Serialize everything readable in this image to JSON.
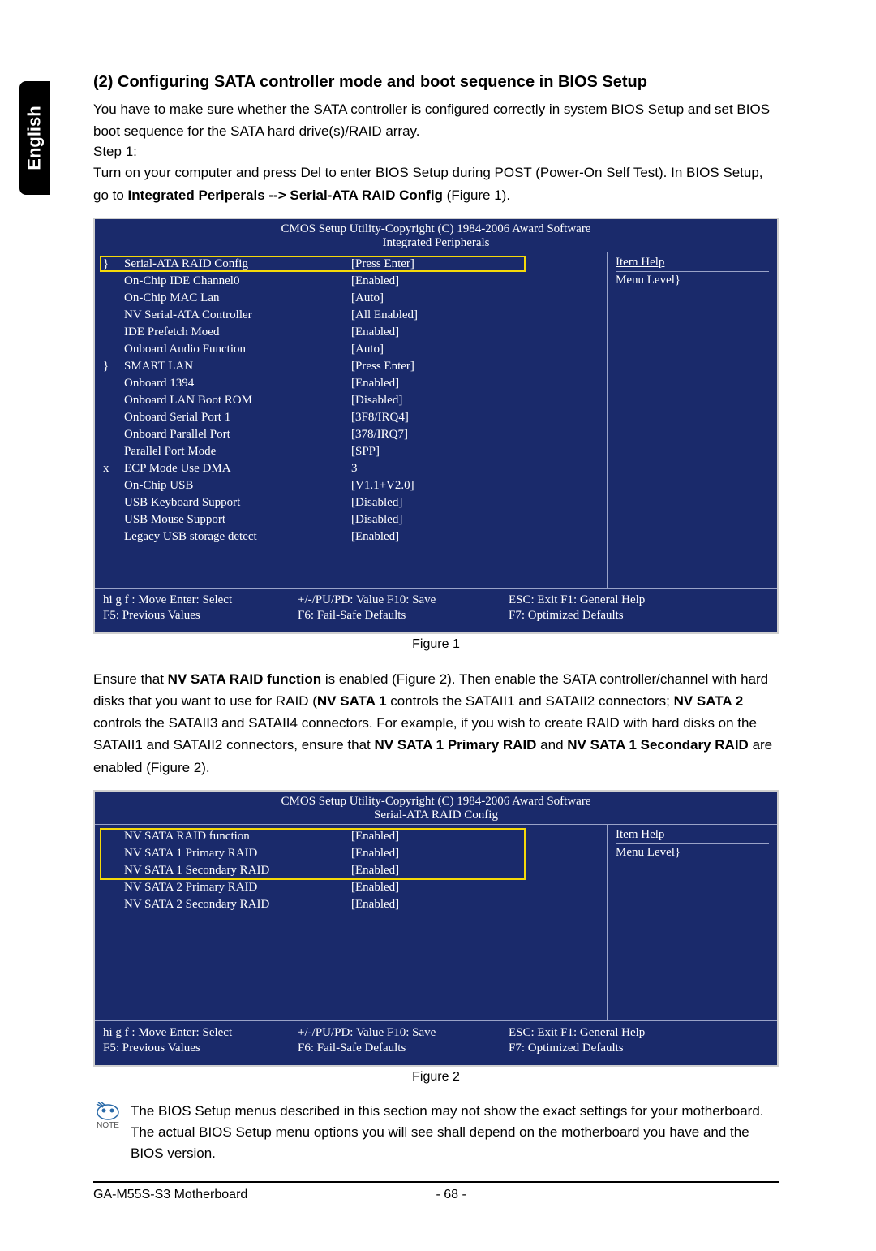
{
  "colors": {
    "bios_bg": "#1a2a6b",
    "bios_border": "#cfcfcf",
    "bios_divider": "#9aa3c8",
    "highlight": "#f5d90a",
    "text": "#000000",
    "bios_text": "#ffffff",
    "page_bg": "#ffffff"
  },
  "language_tab": "English",
  "section_title": "(2) Configuring SATA controller mode and boot sequence in BIOS Setup",
  "paragraph1": "You have to make sure whether the SATA controller is configured correctly in system BIOS Setup and set BIOS boot sequence for the SATA hard drive(s)/RAID array.",
  "step1_label": "Step 1:",
  "paragraph2_pre": "Turn on your computer and press Del to enter BIOS Setup during POST (Power-On Self Test). In BIOS Setup, go to ",
  "paragraph2_bold": "Integrated Periperals --> Serial-ATA RAID Config",
  "paragraph2_post": " (Figure 1).",
  "bios_header_copy": "CMOS Setup Utility-Copyright (C) 1984-2006 Award Software",
  "bios1": {
    "subtitle": "Integrated Peripherals",
    "rows": [
      {
        "mark": "}",
        "label": "Serial-ATA RAID Config",
        "value": "[Press Enter]"
      },
      {
        "mark": "",
        "label": "On-Chip IDE Channel0",
        "value": "[Enabled]"
      },
      {
        "mark": "",
        "label": "On-Chip MAC Lan",
        "value": "[Auto]"
      },
      {
        "mark": "",
        "label": "NV Serial-ATA Controller",
        "value": "[All Enabled]"
      },
      {
        "mark": "",
        "label": "IDE Prefetch Moed",
        "value": "[Enabled]"
      },
      {
        "mark": "",
        "label": "Onboard Audio Function",
        "value": "[Auto]"
      },
      {
        "mark": "}",
        "label": "SMART LAN",
        "value": "[Press Enter]"
      },
      {
        "mark": "",
        "label": "Onboard 1394",
        "value": "[Enabled]"
      },
      {
        "mark": "",
        "label": "Onboard LAN Boot ROM",
        "value": "[Disabled]"
      },
      {
        "mark": "",
        "label": "Onboard Serial Port 1",
        "value": "[3F8/IRQ4]"
      },
      {
        "mark": "",
        "label": "Onboard Parallel Port",
        "value": "[378/IRQ7]"
      },
      {
        "mark": "",
        "label": "Parallel Port Mode",
        "value": "[SPP]"
      },
      {
        "mark": "x",
        "label": "ECP Mode Use DMA",
        "value": "3"
      },
      {
        "mark": "",
        "label": "On-Chip USB",
        "value": "[V1.1+V2.0]"
      },
      {
        "mark": "",
        "label": "USB Keyboard Support",
        "value": "[Disabled]"
      },
      {
        "mark": "",
        "label": "USB Mouse Support",
        "value": "[Disabled]"
      },
      {
        "mark": "",
        "label": "Legacy USB storage detect",
        "value": "[Enabled]"
      }
    ],
    "right_title": "Item Help",
    "right_line2": "Menu Level}",
    "spacer_height": 40
  },
  "bios_footer": {
    "c1a": "hi g f : Move      Enter: Select",
    "c1b": "F5: Previous Values",
    "c2a": "+/-/PU/PD: Value       F10: Save",
    "c2b": "F6: Fail-Safe Defaults",
    "c3a": "ESC: Exit       F1: General Help",
    "c3b": "F7: Optimized Defaults"
  },
  "figure1_caption": "Figure 1",
  "paragraph3_parts": {
    "t1": "Ensure that ",
    "b1": "NV SATA RAID function",
    "t2": " is enabled (Figure 2). Then enable the SATA controller/channel with hard disks that you want to use for RAID (",
    "b2": "NV SATA 1",
    "t3": " controls the SATAII1 and SATAII2 connectors; ",
    "b3": "NV SATA 2",
    "t4": " controls the SATAII3 and SATAII4 connectors. For example, if you wish to create RAID with hard disks on the SATAII1 and SATAII2 connectors, ensure that ",
    "b4": "NV SATA 1 Primary RAID",
    "t5": " and ",
    "b5": "NV SATA 1 Secondary RAID",
    "t6": " are enabled (Figure 2)."
  },
  "bios2": {
    "subtitle": "Serial-ATA RAID Config",
    "rows": [
      {
        "mark": "",
        "label": "NV SATA RAID function",
        "value": "[Enabled]"
      },
      {
        "mark": "",
        "label": "NV SATA 1 Primary RAID",
        "value": "[Enabled]"
      },
      {
        "mark": "",
        "label": "NV SATA 1 Secondary RAID",
        "value": "[Enabled]"
      },
      {
        "mark": "",
        "label": "NV SATA 2 Primary RAID",
        "value": "[Enabled]"
      },
      {
        "mark": "",
        "label": "NV SATA 2 Secondary RAID",
        "value": "[Enabled]"
      }
    ],
    "right_title": "Item Help",
    "right_line2": "Menu Level}",
    "spacer_height": 120
  },
  "figure2_caption": "Figure 2",
  "note_label": "NOTE",
  "note_text": "The BIOS Setup menus described in this section may not show the exact settings for your motherboard. The actual BIOS Setup menu options you will see shall depend on the motherboard you have and the BIOS version.",
  "footer_product": "GA-M55S-S3 Motherboard",
  "footer_page": "- 68 -"
}
